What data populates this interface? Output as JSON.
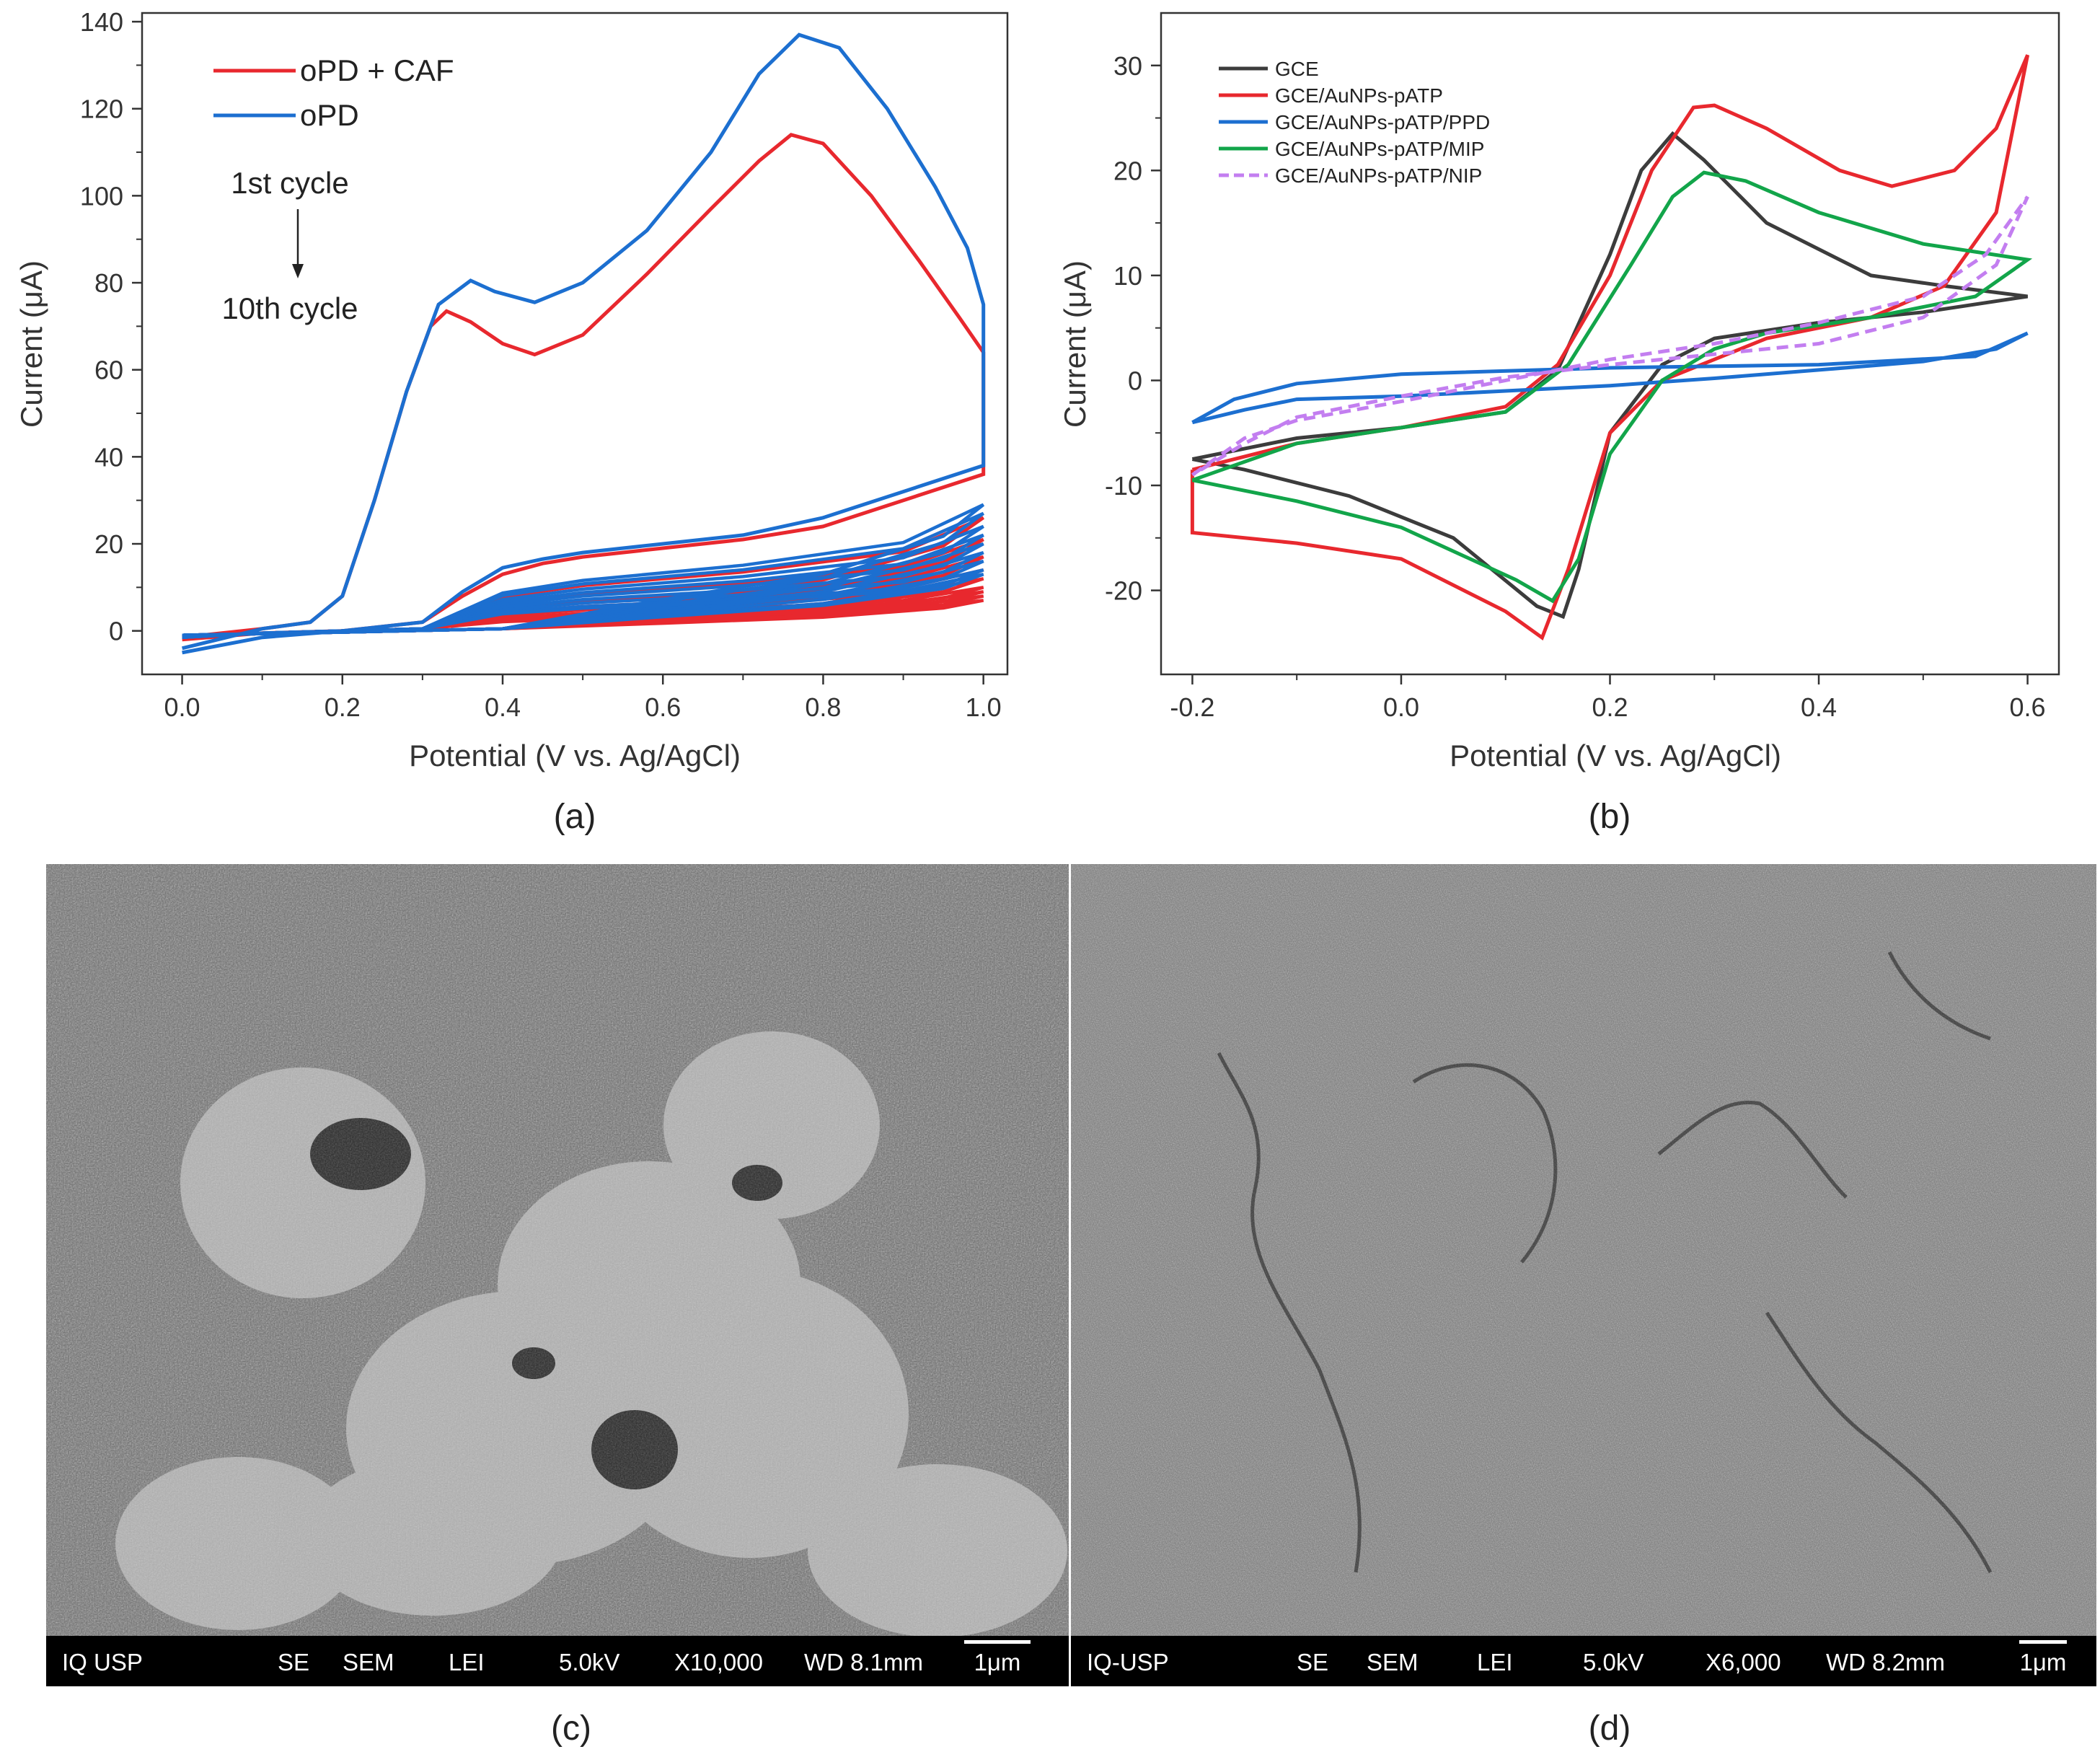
{
  "chart_data": [
    {
      "type": "line",
      "panel_label": "(a)",
      "xlabel": "Potential (V vs. Ag/AgCl)",
      "ylabel": "Current (μA)",
      "xlim": [
        -0.05,
        1.03
      ],
      "ylim": [
        -10,
        142
      ],
      "xticks": [
        "0.0",
        "0.2",
        "0.4",
        "0.6",
        "0.8",
        "1.0"
      ],
      "yticks": [
        "0",
        "20",
        "40",
        "60",
        "80",
        "100",
        "120",
        "140"
      ],
      "legend_position": "top-left",
      "annotation_top": "1st cycle",
      "annotation_bottom": "10th cycle",
      "series": [
        {
          "name": "oPD + CAF",
          "color": "#e8282e",
          "first_cycle": {
            "forward": [
              [
                0.0,
                -1.5
              ],
              [
                0.1,
                0.5
              ],
              [
                0.16,
                2
              ],
              [
                0.2,
                8
              ],
              [
                0.24,
                30
              ],
              [
                0.28,
                55
              ],
              [
                0.31,
                70
              ],
              [
                0.33,
                73.5
              ],
              [
                0.36,
                71
              ],
              [
                0.4,
                66
              ],
              [
                0.44,
                63.5
              ],
              [
                0.5,
                68
              ],
              [
                0.58,
                82
              ],
              [
                0.66,
                97
              ],
              [
                0.72,
                108
              ],
              [
                0.76,
                114
              ],
              [
                0.8,
                112
              ],
              [
                0.86,
                100
              ],
              [
                0.92,
                85
              ],
              [
                0.97,
                72
              ],
              [
                1.0,
                64
              ]
            ],
            "reverse": [
              [
                1.0,
                64
              ],
              [
                1.0,
                36
              ],
              [
                0.9,
                30
              ],
              [
                0.8,
                24
              ],
              [
                0.7,
                21
              ],
              [
                0.6,
                19
              ],
              [
                0.5,
                17
              ],
              [
                0.45,
                15.5
              ],
              [
                0.4,
                13
              ],
              [
                0.35,
                8
              ],
              [
                0.3,
                2
              ],
              [
                0.2,
                0
              ],
              [
                0.1,
                -0.5
              ],
              [
                0.0,
                -2
              ]
            ]
          },
          "later_cycles_max_current": [
            26,
            21,
            17,
            14,
            12,
            10,
            9,
            8,
            7
          ]
        },
        {
          "name": "oPD",
          "color": "#1c6fd0",
          "first_cycle": {
            "forward": [
              [
                0.0,
                -4
              ],
              [
                0.1,
                0.5
              ],
              [
                0.16,
                2
              ],
              [
                0.2,
                8
              ],
              [
                0.24,
                30
              ],
              [
                0.28,
                55
              ],
              [
                0.32,
                75
              ],
              [
                0.36,
                80.5
              ],
              [
                0.39,
                78
              ],
              [
                0.44,
                75.5
              ],
              [
                0.5,
                80
              ],
              [
                0.58,
                92
              ],
              [
                0.66,
                110
              ],
              [
                0.72,
                128
              ],
              [
                0.77,
                137
              ],
              [
                0.82,
                134
              ],
              [
                0.88,
                120
              ],
              [
                0.94,
                102
              ],
              [
                0.98,
                88
              ],
              [
                1.0,
                75
              ]
            ],
            "reverse": [
              [
                1.0,
                75
              ],
              [
                1.0,
                38
              ],
              [
                0.9,
                32
              ],
              [
                0.8,
                26
              ],
              [
                0.7,
                22
              ],
              [
                0.6,
                20
              ],
              [
                0.5,
                18
              ],
              [
                0.45,
                16.5
              ],
              [
                0.4,
                14.5
              ],
              [
                0.35,
                9
              ],
              [
                0.3,
                2
              ],
              [
                0.2,
                0
              ],
              [
                0.1,
                -1.5
              ],
              [
                0.0,
                -5
              ]
            ]
          },
          "later_cycles_max_current": [
            29,
            27,
            24,
            22,
            20,
            18,
            16,
            14,
            13
          ]
        }
      ]
    },
    {
      "type": "line",
      "panel_label": "(b)",
      "xlabel": "Potential (V vs. Ag/AgCl)",
      "ylabel": "Current (μA)",
      "xlim": [
        -0.23,
        0.63
      ],
      "ylim": [
        -28,
        35
      ],
      "xticks": [
        "-0.2",
        "0.0",
        "0.2",
        "0.4",
        "0.6"
      ],
      "yticks": [
        "-20",
        "-10",
        "0",
        "10",
        "20",
        "30"
      ],
      "legend_position": "top-left",
      "series": [
        {
          "name": "GCE",
          "color": "#3c3c3c",
          "dashed": false,
          "forward": [
            [
              -0.2,
              -7.5
            ],
            [
              -0.1,
              -5.5
            ],
            [
              0.0,
              -4.5
            ],
            [
              0.1,
              -3
            ],
            [
              0.15,
              1
            ],
            [
              0.2,
              12
            ],
            [
              0.23,
              20
            ],
            [
              0.26,
              23.5
            ],
            [
              0.29,
              21
            ],
            [
              0.35,
              15
            ],
            [
              0.45,
              10
            ],
            [
              0.52,
              9
            ],
            [
              0.6,
              8
            ]
          ],
          "reverse": [
            [
              0.6,
              8
            ],
            [
              0.5,
              6.5
            ],
            [
              0.4,
              5.5
            ],
            [
              0.3,
              4
            ],
            [
              0.25,
              1.5
            ],
            [
              0.2,
              -5
            ],
            [
              0.17,
              -18
            ],
            [
              0.155,
              -22.5
            ],
            [
              0.13,
              -21.5
            ],
            [
              0.05,
              -15
            ],
            [
              -0.05,
              -11
            ],
            [
              -0.15,
              -8.5
            ],
            [
              -0.2,
              -7.5
            ]
          ]
        },
        {
          "name": "GCE/AuNPs-pATP",
          "color": "#e8282e",
          "dashed": false,
          "forward": [
            [
              -0.2,
              -8.5
            ],
            [
              -0.1,
              -6
            ],
            [
              0.0,
              -4.5
            ],
            [
              0.1,
              -2.5
            ],
            [
              0.15,
              1.5
            ],
            [
              0.2,
              10
            ],
            [
              0.24,
              20
            ],
            [
              0.28,
              26
            ],
            [
              0.3,
              26.2
            ],
            [
              0.35,
              24
            ],
            [
              0.42,
              20
            ],
            [
              0.47,
              18.5
            ],
            [
              0.53,
              20
            ],
            [
              0.57,
              24
            ],
            [
              0.6,
              31
            ]
          ],
          "reverse": [
            [
              0.6,
              31
            ],
            [
              0.57,
              16
            ],
            [
              0.52,
              9
            ],
            [
              0.45,
              6
            ],
            [
              0.35,
              4
            ],
            [
              0.3,
              2
            ],
            [
              0.25,
              0
            ],
            [
              0.2,
              -5
            ],
            [
              0.16,
              -18
            ],
            [
              0.135,
              -24.5
            ],
            [
              0.1,
              -22
            ],
            [
              0.0,
              -17
            ],
            [
              -0.1,
              -15.5
            ],
            [
              -0.2,
              -14.5
            ],
            [
              -0.2,
              -8.5
            ]
          ]
        },
        {
          "name": "GCE/AuNPs-pATP/PPD",
          "color": "#1c6fd0",
          "dashed": false,
          "forward": [
            [
              -0.2,
              -4
            ],
            [
              -0.15,
              -2.8
            ],
            [
              -0.1,
              -1.8
            ],
            [
              0.0,
              -1.5
            ],
            [
              0.1,
              -1
            ],
            [
              0.2,
              -0.5
            ],
            [
              0.3,
              0.2
            ],
            [
              0.4,
              1
            ],
            [
              0.5,
              1.8
            ],
            [
              0.57,
              3
            ],
            [
              0.6,
              4.5
            ]
          ],
          "reverse": [
            [
              0.6,
              4.5
            ],
            [
              0.55,
              2.3
            ],
            [
              0.4,
              1.5
            ],
            [
              0.2,
              1.2
            ],
            [
              0.0,
              0.6
            ],
            [
              -0.1,
              -0.3
            ],
            [
              -0.16,
              -1.8
            ],
            [
              -0.2,
              -4
            ]
          ]
        },
        {
          "name": "GCE/AuNPs-pATP/MIP",
          "color": "#12a54a",
          "dashed": false,
          "forward": [
            [
              -0.2,
              -9.5
            ],
            [
              -0.1,
              -6
            ],
            [
              0.0,
              -4.5
            ],
            [
              0.1,
              -3
            ],
            [
              0.16,
              1.5
            ],
            [
              0.22,
              11
            ],
            [
              0.26,
              17.5
            ],
            [
              0.29,
              19.8
            ],
            [
              0.33,
              19
            ],
            [
              0.4,
              16
            ],
            [
              0.5,
              13
            ],
            [
              0.6,
              11.5
            ]
          ],
          "reverse": [
            [
              0.6,
              11.5
            ],
            [
              0.55,
              8
            ],
            [
              0.45,
              6
            ],
            [
              0.35,
              4.5
            ],
            [
              0.3,
              3
            ],
            [
              0.25,
              0
            ],
            [
              0.2,
              -7
            ],
            [
              0.17,
              -17
            ],
            [
              0.145,
              -21
            ],
            [
              0.11,
              -19
            ],
            [
              0.0,
              -14
            ],
            [
              -0.1,
              -11.5
            ],
            [
              -0.2,
              -9.5
            ]
          ]
        },
        {
          "name": "GCE/AuNPs-pATP/NIP",
          "color": "#c37ef0",
          "dashed": true,
          "forward": [
            [
              -0.2,
              -9
            ],
            [
              -0.15,
              -5.5
            ],
            [
              -0.1,
              -3.8
            ],
            [
              0.0,
              -2
            ],
            [
              0.1,
              0
            ],
            [
              0.2,
              2
            ],
            [
              0.3,
              3.5
            ],
            [
              0.4,
              5.5
            ],
            [
              0.5,
              8
            ],
            [
              0.56,
              12
            ],
            [
              0.6,
              17.5
            ]
          ],
          "reverse": [
            [
              0.6,
              17.5
            ],
            [
              0.57,
              11
            ],
            [
              0.5,
              6
            ],
            [
              0.4,
              3.5
            ],
            [
              0.3,
              2.5
            ],
            [
              0.2,
              1.5
            ],
            [
              0.1,
              0.3
            ],
            [
              0.0,
              -1.5
            ],
            [
              -0.1,
              -3.5
            ],
            [
              -0.15,
              -6
            ],
            [
              -0.2,
              -9
            ]
          ]
        }
      ]
    }
  ],
  "sem_images": [
    {
      "panel_label": "(c)",
      "bar": {
        "institution": "IQ USP",
        "signal": "SE",
        "mode": "SEM",
        "detector": "LEI",
        "voltage": "5.0kV",
        "magnification": "X10,000",
        "working_distance": "WD 8.1mm",
        "scale": "1μm"
      }
    },
    {
      "panel_label": "(d)",
      "bar": {
        "institution": "IQ-USP",
        "signal": "SE",
        "mode": "SEM",
        "detector": "LEI",
        "voltage": "5.0kV",
        "magnification": "X6,000",
        "working_distance": "WD 8.2mm",
        "scale": "1μm"
      }
    }
  ]
}
